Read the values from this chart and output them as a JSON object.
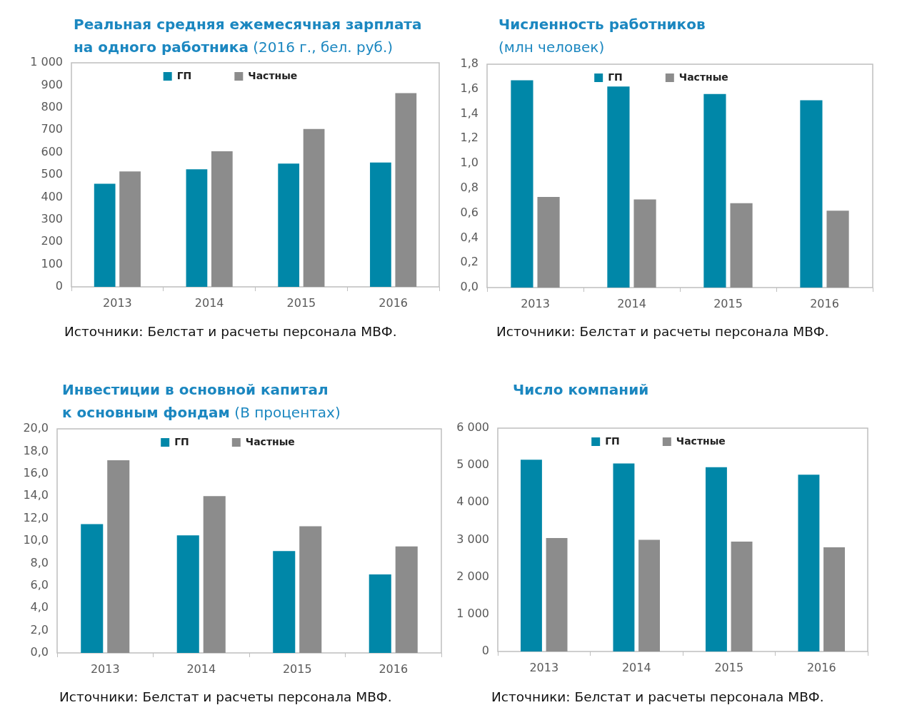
{
  "chart_data": [
    {
      "type": "bar",
      "title": "Реальная средняя ежемесячная зарплата на одного работника (2016 г., бел. руб.)",
      "categories": [
        "2013",
        "2014",
        "2015",
        "2016"
      ],
      "series": [
        {
          "name": "ГП",
          "color": "#0087a8",
          "values": [
            460,
            525,
            550,
            555
          ]
        },
        {
          "name": "Частные",
          "color": "#8c8c8c",
          "values": [
            515,
            605,
            705,
            865
          ]
        }
      ],
      "ylim": [
        0,
        1000
      ],
      "yticks": [
        0,
        100,
        200,
        300,
        400,
        500,
        600,
        700,
        800,
        900,
        {
          "value": 1000,
          "label": "1 000"
        }
      ],
      "legend": "top",
      "annotations": [
        "Источники: Белстат и расчеты персонала МВФ."
      ]
    },
    {
      "type": "bar",
      "title": "Численность работников (млн человек)",
      "categories": [
        "2013",
        "2014",
        "2015",
        "2016"
      ],
      "series": [
        {
          "name": "ГП",
          "color": "#0087a8",
          "values": [
            1.67,
            1.62,
            1.56,
            1.51
          ]
        },
        {
          "name": "Частные",
          "color": "#8c8c8c",
          "values": [
            0.73,
            0.71,
            0.68,
            0.62
          ]
        }
      ],
      "ylim": [
        0,
        1.8
      ],
      "yticks": [
        {
          "value": 0,
          "label": "0,0"
        },
        {
          "value": 0.2,
          "label": "0,2"
        },
        {
          "value": 0.4,
          "label": "0,4"
        },
        {
          "value": 0.6,
          "label": "0,6"
        },
        {
          "value": 0.8,
          "label": "0,8"
        },
        {
          "value": 1.0,
          "label": "1,0"
        },
        {
          "value": 1.2,
          "label": "1,2"
        },
        {
          "value": 1.4,
          "label": "1,4"
        },
        {
          "value": 1.6,
          "label": "1,6"
        },
        {
          "value": 1.8,
          "label": "1,8"
        }
      ],
      "legend": "top",
      "annotations": [
        "Источники: Белстат и расчеты персонала МВФ."
      ]
    },
    {
      "type": "bar",
      "title": "Инвестиции в основной капитал к основным фондам (В процентах)",
      "categories": [
        "2013",
        "2014",
        "2015",
        "2016"
      ],
      "series": [
        {
          "name": "ГП",
          "color": "#0087a8",
          "values": [
            11.5,
            10.5,
            9.1,
            7.0
          ]
        },
        {
          "name": "Частные",
          "color": "#8c8c8c",
          "values": [
            17.2,
            14.0,
            11.3,
            9.5
          ]
        }
      ],
      "ylim": [
        0,
        20
      ],
      "yticks": [
        {
          "value": 0,
          "label": "0,0"
        },
        {
          "value": 2,
          "label": "2,0"
        },
        {
          "value": 4,
          "label": "4,0"
        },
        {
          "value": 6,
          "label": "6,0"
        },
        {
          "value": 8,
          "label": "8,0"
        },
        {
          "value": 10,
          "label": "10,0"
        },
        {
          "value": 12,
          "label": "12,0"
        },
        {
          "value": 14,
          "label": "14,0"
        },
        {
          "value": 16,
          "label": "16,0"
        },
        {
          "value": 18,
          "label": "18,0"
        },
        {
          "value": 20,
          "label": "20,0"
        }
      ],
      "legend": "top",
      "annotations": [
        "Источники: Белстат и расчеты персонала МВФ."
      ]
    },
    {
      "type": "bar",
      "title": "Число компаний",
      "categories": [
        "2013",
        "2014",
        "2015",
        "2016"
      ],
      "series": [
        {
          "name": "ГП",
          "color": "#0087a8",
          "values": [
            5150,
            5050,
            4950,
            4750
          ]
        },
        {
          "name": "Частные",
          "color": "#8c8c8c",
          "values": [
            3050,
            3000,
            2950,
            2800
          ]
        }
      ],
      "ylim": [
        0,
        6000
      ],
      "yticks": [
        0,
        {
          "value": 1000,
          "label": "1 000"
        },
        {
          "value": 2000,
          "label": "2 000"
        },
        {
          "value": 3000,
          "label": "3 000"
        },
        {
          "value": 4000,
          "label": "4 000"
        },
        {
          "value": 5000,
          "label": "5 000"
        },
        {
          "value": 6000,
          "label": "6 000"
        }
      ],
      "legend": "top",
      "annotations": [
        "Источники: Белстат и расчеты персонала МВФ."
      ]
    }
  ]
}
